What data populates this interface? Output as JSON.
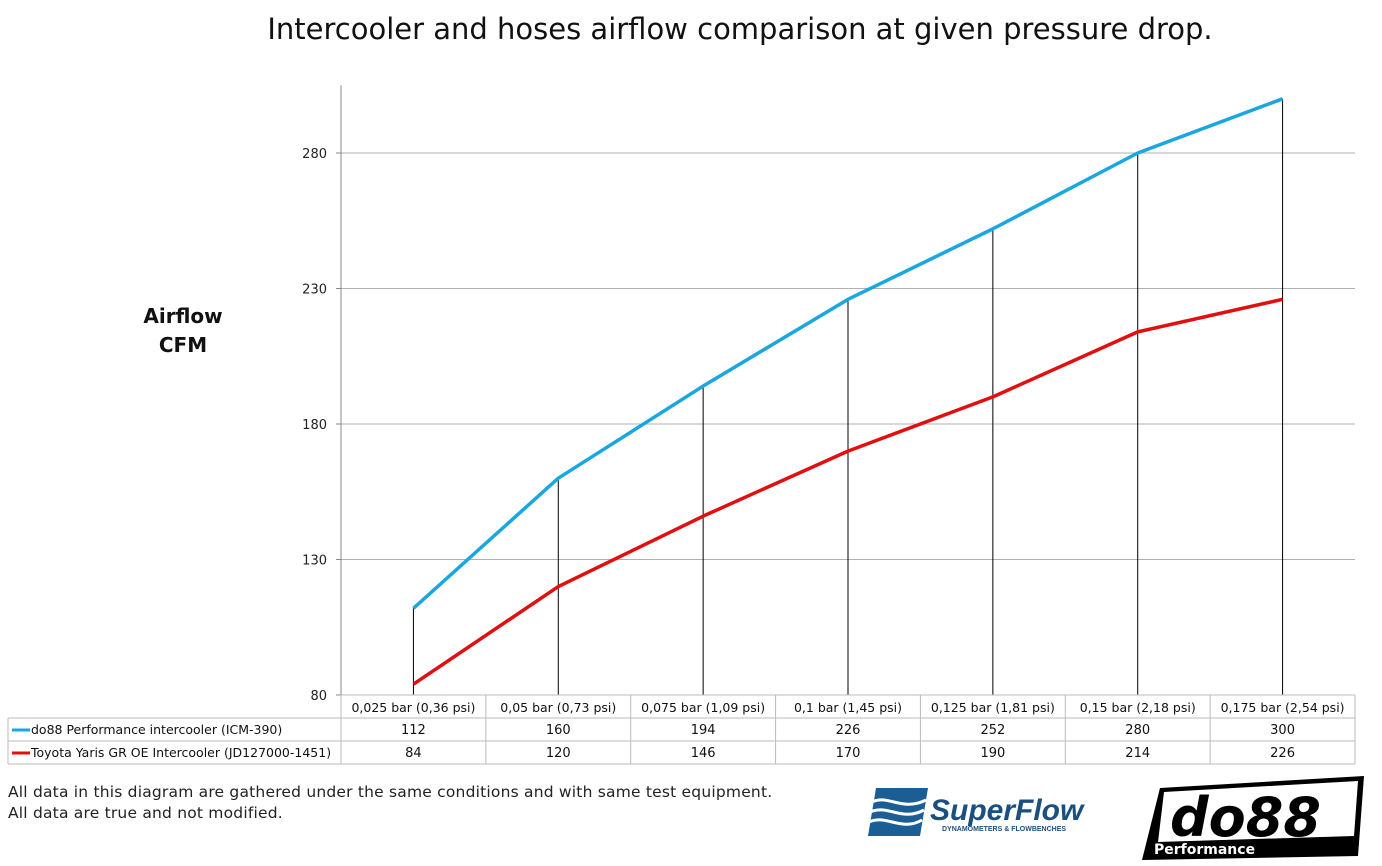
{
  "chart_data": {
    "type": "line",
    "title": "Intercooler and hoses airflow comparison at given pressure drop.",
    "ylabel": "Airflow CFM",
    "ylabel_lines": [
      "Airflow",
      "CFM"
    ],
    "xlabel": "",
    "ylim": [
      80,
      305
    ],
    "yticks": [
      80,
      130,
      180,
      230,
      280
    ],
    "grid": true,
    "legend": "data-table-below",
    "categories": [
      "0,025 bar (0,36 psi)",
      "0,05 bar (0,73 psi)",
      "0,075 bar (1,09 psi)",
      "0,1 bar (1,45 psi)",
      "0,125 bar (1,81 psi)",
      "0,15 bar (2,18 psi)",
      "0,175 bar (2,54 psi)"
    ],
    "series": [
      {
        "name": "do88 Performance intercooler (ICM-390)",
        "color": "#1aa7e0",
        "values": [
          112,
          160,
          194,
          226,
          252,
          280,
          300
        ]
      },
      {
        "name": "Toyota Yaris GR OE Intercooler (JD127000-1451)",
        "color": "#e01010",
        "values": [
          84,
          120,
          146,
          170,
          190,
          214,
          226
        ]
      }
    ]
  },
  "footer": {
    "line1": "All data in this diagram are gathered under the same conditions and with same test equipment.",
    "line2": "All data are true and not modified."
  },
  "logos": {
    "superflow": "SuperFlow",
    "superflow_tagline": "DYNAMOMETERS & FLOWBENCHES",
    "do88": "do88",
    "do88_sub": "Performance"
  }
}
